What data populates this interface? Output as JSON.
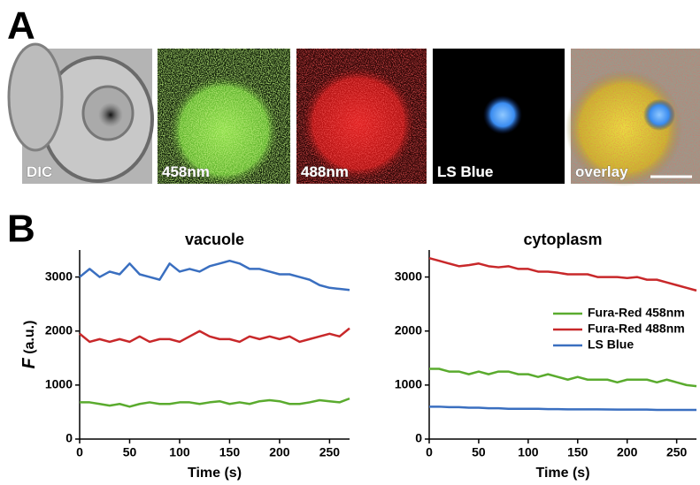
{
  "panel_a": {
    "letter": "A",
    "images": [
      {
        "label": "DIC"
      },
      {
        "label": "458nm"
      },
      {
        "label": "488nm"
      },
      {
        "label": "LS Blue"
      },
      {
        "label": "overlay"
      }
    ]
  },
  "panel_b": {
    "letter": "B"
  },
  "chart_data": [
    {
      "type": "line",
      "title": "vacuole",
      "ylabel_symbol": "F",
      "ylabel_unit": "(a.u.)",
      "xlabel": "Time (s)",
      "x": [
        0,
        10,
        20,
        30,
        40,
        50,
        60,
        70,
        80,
        90,
        100,
        110,
        120,
        130,
        140,
        150,
        160,
        170,
        180,
        190,
        200,
        210,
        220,
        230,
        240,
        250,
        260,
        270
      ],
      "series": [
        {
          "color": "#3a6fc0",
          "values": [
            3000,
            3150,
            3000,
            3100,
            3050,
            3250,
            3050,
            3000,
            2950,
            3250,
            3100,
            3150,
            3100,
            3200,
            3250,
            3300,
            3250,
            3150,
            3150,
            3100,
            3050,
            3050,
            3000,
            2950,
            2850,
            2800,
            2780,
            2760
          ]
        },
        {
          "color": "#c8282a",
          "values": [
            1950,
            1800,
            1850,
            1800,
            1850,
            1800,
            1900,
            1800,
            1850,
            1850,
            1800,
            1900,
            2000,
            1900,
            1850,
            1850,
            1800,
            1900,
            1850,
            1900,
            1850,
            1900,
            1800,
            1850,
            1900,
            1950,
            1900,
            2050
          ]
        },
        {
          "color": "#5aab2e",
          "values": [
            680,
            680,
            650,
            620,
            650,
            600,
            650,
            680,
            650,
            650,
            680,
            680,
            650,
            680,
            700,
            650,
            680,
            650,
            700,
            720,
            700,
            650,
            650,
            680,
            720,
            700,
            680,
            750
          ]
        }
      ],
      "xlim": [
        0,
        270
      ],
      "ylim": [
        0,
        3500
      ],
      "xticks": [
        0,
        50,
        100,
        150,
        200,
        250
      ],
      "yticks": [
        0,
        1000,
        2000,
        3000
      ],
      "legend": false
    },
    {
      "type": "line",
      "title": "cytoplasm",
      "xlabel": "Time (s)",
      "x": [
        0,
        10,
        20,
        30,
        40,
        50,
        60,
        70,
        80,
        90,
        100,
        110,
        120,
        130,
        140,
        150,
        160,
        170,
        180,
        190,
        200,
        210,
        220,
        230,
        240,
        250,
        260,
        270
      ],
      "series": [
        {
          "name": "Fura-Red 458nm",
          "color": "#5aab2e",
          "values": [
            1300,
            1300,
            1250,
            1250,
            1200,
            1250,
            1200,
            1250,
            1250,
            1200,
            1200,
            1150,
            1200,
            1150,
            1100,
            1150,
            1100,
            1100,
            1100,
            1050,
            1100,
            1100,
            1100,
            1050,
            1100,
            1050,
            1000,
            980
          ]
        },
        {
          "name": "Fura-Red 488nm",
          "color": "#c8282a",
          "values": [
            3350,
            3300,
            3250,
            3200,
            3220,
            3250,
            3200,
            3180,
            3200,
            3150,
            3150,
            3100,
            3100,
            3080,
            3050,
            3050,
            3050,
            3000,
            3000,
            3000,
            2980,
            3000,
            2950,
            2950,
            2900,
            2850,
            2800,
            2750
          ]
        },
        {
          "name": "LS Blue",
          "color": "#3a6fc0",
          "values": [
            600,
            600,
            590,
            590,
            580,
            580,
            570,
            570,
            560,
            560,
            560,
            560,
            555,
            555,
            550,
            550,
            550,
            550,
            548,
            545,
            545,
            545,
            545,
            540,
            540,
            540,
            540,
            540
          ]
        }
      ],
      "xlim": [
        0,
        270
      ],
      "ylim": [
        0,
        3500
      ],
      "xticks": [
        0,
        50,
        100,
        150,
        200,
        250
      ],
      "yticks": [
        0,
        1000,
        2000,
        3000
      ],
      "legend": true
    }
  ]
}
